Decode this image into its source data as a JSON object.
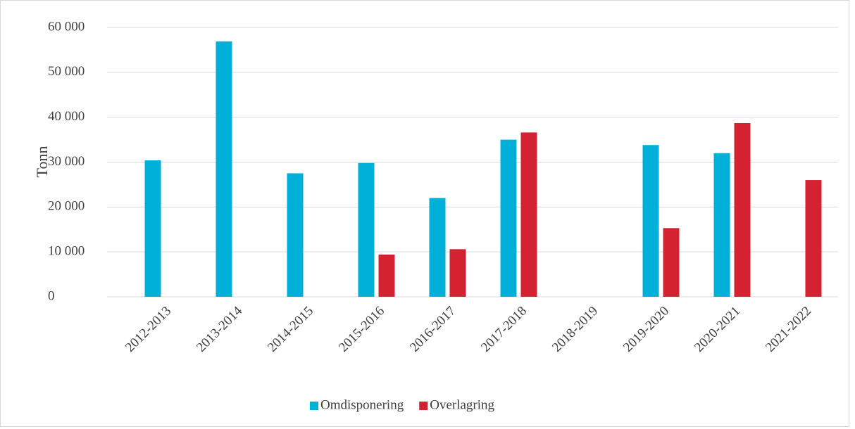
{
  "chart_data": {
    "type": "bar",
    "y_label": "Tonn",
    "categories": [
      "2012-2013",
      "2013-2014",
      "2014-2015",
      "2015-2016",
      "2016-2017",
      "2017-2018",
      "2018-2019",
      "2019-2020",
      "2020-2021",
      "2021-2022"
    ],
    "series": [
      {
        "name": "Omdisponering",
        "color": "#00b0d8",
        "values": [
          30400,
          56900,
          27500,
          29800,
          22000,
          35000,
          null,
          33800,
          32000,
          null
        ]
      },
      {
        "name": "Overlagring",
        "color": "#d42232",
        "values": [
          null,
          null,
          null,
          9400,
          10600,
          36600,
          null,
          15300,
          38700,
          26000
        ]
      }
    ],
    "ylim": [
      0,
      60000
    ],
    "yticks": [
      0,
      {
        "value": 10000,
        "label": "10 000"
      },
      {
        "value": 20000,
        "label": "20 000"
      },
      {
        "value": 30000,
        "label": "30 000"
      },
      {
        "value": 40000,
        "label": "40 000"
      },
      {
        "value": 50000,
        "label": "50 000"
      },
      {
        "value": 60000,
        "label": "60 000"
      }
    ],
    "grid": true,
    "legend": "bottom"
  }
}
